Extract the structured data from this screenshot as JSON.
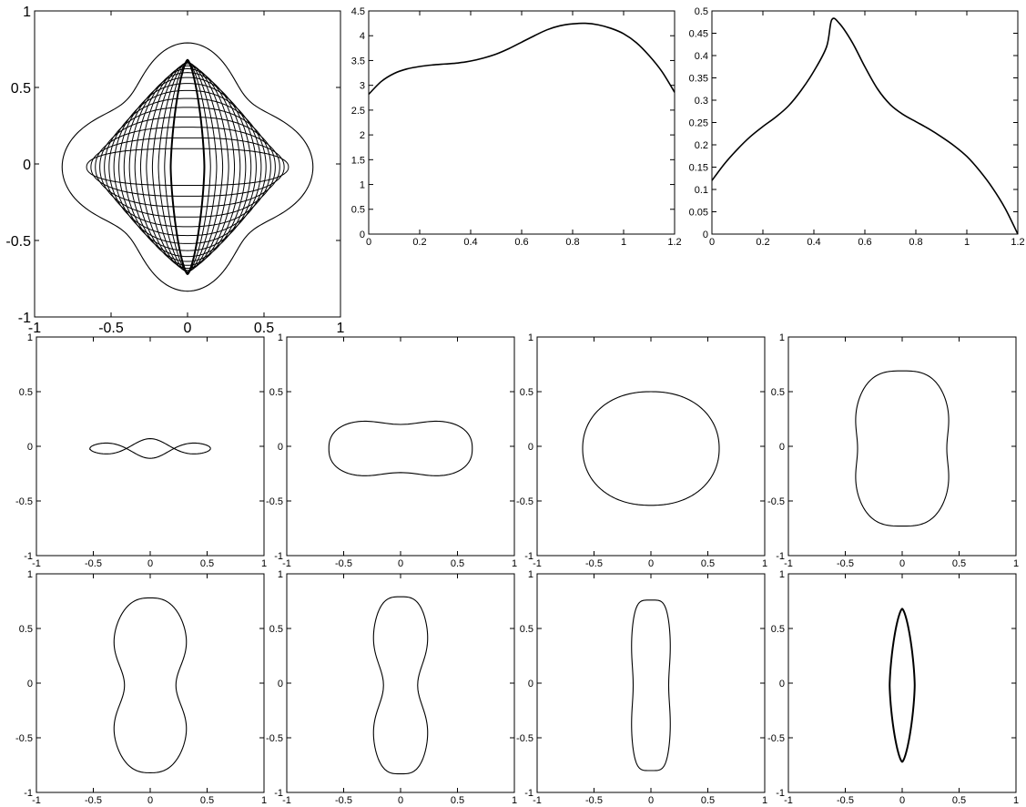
{
  "chart_data": [
    {
      "type": "line",
      "description_of_content": "overlay of closed shape contours",
      "xlim": [
        -1,
        1
      ],
      "ylim": [
        -1,
        1
      ],
      "xticks": [
        "-1",
        "-0.5",
        "0",
        "0.5",
        "1"
      ],
      "yticks": [
        "-1",
        "-0.5",
        "0",
        "0.5",
        "1"
      ],
      "grid": false,
      "series_count": 17
    },
    {
      "type": "line",
      "xlim": [
        0,
        1.2
      ],
      "ylim": [
        0,
        4.5
      ],
      "xticks": [
        "0",
        "0.2",
        "0.4",
        "0.6",
        "0.8",
        "1",
        "1.2"
      ],
      "yticks": [
        "0",
        "0.5",
        "1",
        "1.5",
        "2",
        "2.5",
        "3",
        "3.5",
        "4",
        "4.5"
      ],
      "grid": false,
      "x": [
        0,
        0.05,
        0.1,
        0.15,
        0.2,
        0.25,
        0.3,
        0.35,
        0.4,
        0.45,
        0.5,
        0.55,
        0.6,
        0.65,
        0.7,
        0.75,
        0.8,
        0.85,
        0.9,
        0.95,
        1.0,
        1.05,
        1.1,
        1.15,
        1.2
      ],
      "y": [
        2.82,
        3.08,
        3.24,
        3.33,
        3.38,
        3.41,
        3.43,
        3.45,
        3.49,
        3.55,
        3.63,
        3.74,
        3.87,
        4.0,
        4.12,
        4.2,
        4.24,
        4.25,
        4.22,
        4.15,
        4.04,
        3.86,
        3.6,
        3.28,
        2.86
      ]
    },
    {
      "type": "line",
      "xlim": [
        0,
        1.2
      ],
      "ylim": [
        0,
        0.5
      ],
      "xticks": [
        "0",
        "0.2",
        "0.4",
        "0.6",
        "0.8",
        "1",
        "1.2"
      ],
      "yticks": [
        "0",
        "0.05",
        "0.1",
        "0.15",
        "0.2",
        "0.25",
        "0.3",
        "0.35",
        "0.4",
        "0.45",
        "0.5"
      ],
      "grid": false,
      "x": [
        0,
        0.05,
        0.1,
        0.15,
        0.2,
        0.25,
        0.3,
        0.35,
        0.4,
        0.45,
        0.47,
        0.5,
        0.55,
        0.6,
        0.65,
        0.7,
        0.75,
        0.8,
        0.85,
        0.9,
        0.95,
        1.0,
        1.05,
        1.1,
        1.15,
        1.2
      ],
      "y": [
        0.12,
        0.158,
        0.19,
        0.218,
        0.241,
        0.262,
        0.287,
        0.322,
        0.365,
        0.42,
        0.48,
        0.472,
        0.43,
        0.375,
        0.325,
        0.29,
        0.268,
        0.252,
        0.236,
        0.218,
        0.198,
        0.174,
        0.142,
        0.104,
        0.058,
        0.0
      ]
    },
    {
      "type": "line",
      "xlim": [
        -1,
        1
      ],
      "ylim": [
        -1,
        1
      ],
      "xticks": [
        "-1",
        "-0.5",
        "0",
        "0.5",
        "1"
      ],
      "yticks": [
        "-1",
        "-0.5",
        "0",
        "0.5",
        "1"
      ],
      "shape": {
        "a": 0.53,
        "b": 0.09,
        "bump": [
          0.0,
          0.0,
          0.11
        ],
        "n": 2.1,
        "m": 2.0,
        "ynarrow": 0.06,
        "cy": -0.02
      }
    },
    {
      "type": "line",
      "xlim": [
        -1,
        1
      ],
      "ylim": [
        -1,
        1
      ],
      "xticks": [
        "-1",
        "-0.5",
        "0",
        "0.5",
        "1"
      ],
      "yticks": [
        "-1",
        "-0.5",
        "0",
        "0.5",
        "1"
      ],
      "shape": {
        "a": 0.63,
        "b": 0.28,
        "n": 3.2,
        "m": 2.4,
        "ynarrow": 0.02,
        "cy": -0.02
      }
    },
    {
      "type": "line",
      "xlim": [
        -1,
        1
      ],
      "ylim": [
        -1,
        1
      ],
      "xticks": [
        "-1",
        "-0.5",
        "0",
        "0.5",
        "1"
      ],
      "yticks": [
        "-1",
        "-0.5",
        "0",
        "0.5",
        "1"
      ],
      "shape": {
        "a": 0.6,
        "b": 0.52,
        "n": 2.2,
        "m": 2.1,
        "ynarrow": 0.0,
        "cy": -0.02
      }
    },
    {
      "type": "line",
      "xlim": [
        -1,
        1
      ],
      "ylim": [
        -1,
        1
      ],
      "xticks": [
        "-1",
        "-0.5",
        "0",
        "0.5",
        "1"
      ],
      "yticks": [
        "-1",
        "-0.5",
        "0",
        "0.5",
        "1"
      ],
      "shape": {
        "a": 0.44,
        "b": 0.71,
        "n": 3.0,
        "m": 2.3,
        "xnarrow": 0.04,
        "cy": -0.02
      }
    },
    {
      "type": "line",
      "xlim": [
        -1,
        1
      ],
      "ylim": [
        -1,
        1
      ],
      "xticks": [
        "-1",
        "-0.5",
        "0",
        "0.5",
        "1"
      ],
      "yticks": [
        "-1",
        "-0.5",
        "0",
        "0.5",
        "1"
      ],
      "shape": {
        "a": 0.37,
        "b": 0.8,
        "n": 2.6,
        "m": 2.2,
        "xnarrow": 0.12,
        "cy": -0.02
      }
    },
    {
      "type": "line",
      "xlim": [
        -1,
        1
      ],
      "ylim": [
        -1,
        1
      ],
      "xticks": [
        "-1",
        "-0.5",
        "0",
        "0.5",
        "1"
      ],
      "yticks": [
        "-1",
        "-0.5",
        "0",
        "0.5",
        "1"
      ],
      "shape": {
        "a": 0.27,
        "b": 0.81,
        "n": 3.2,
        "m": 2.4,
        "xnarrow": 0.1,
        "cy": -0.02
      }
    },
    {
      "type": "line",
      "xlim": [
        -1,
        1
      ],
      "ylim": [
        -1,
        1
      ],
      "xticks": [
        "-1",
        "-0.5",
        "0",
        "0.5",
        "1"
      ],
      "yticks": [
        "-1",
        "-0.5",
        "0",
        "0.5",
        "1"
      ],
      "shape": {
        "a": 0.18,
        "b": 0.78,
        "n": 4.5,
        "m": 2.6,
        "xnarrow": 0.02,
        "cy": -0.02
      }
    },
    {
      "type": "line",
      "xlim": [
        -1,
        1
      ],
      "ylim": [
        -1,
        1
      ],
      "xticks": [
        "-1",
        "-0.5",
        "0",
        "0.5",
        "1"
      ],
      "yticks": [
        "-1",
        "-0.5",
        "0",
        "0.5",
        "1"
      ],
      "shape": {
        "a": 0.11,
        "b": 0.7,
        "n": 1.5,
        "m": 1.5,
        "xnarrow": 0.0,
        "cy": -0.02
      }
    }
  ]
}
